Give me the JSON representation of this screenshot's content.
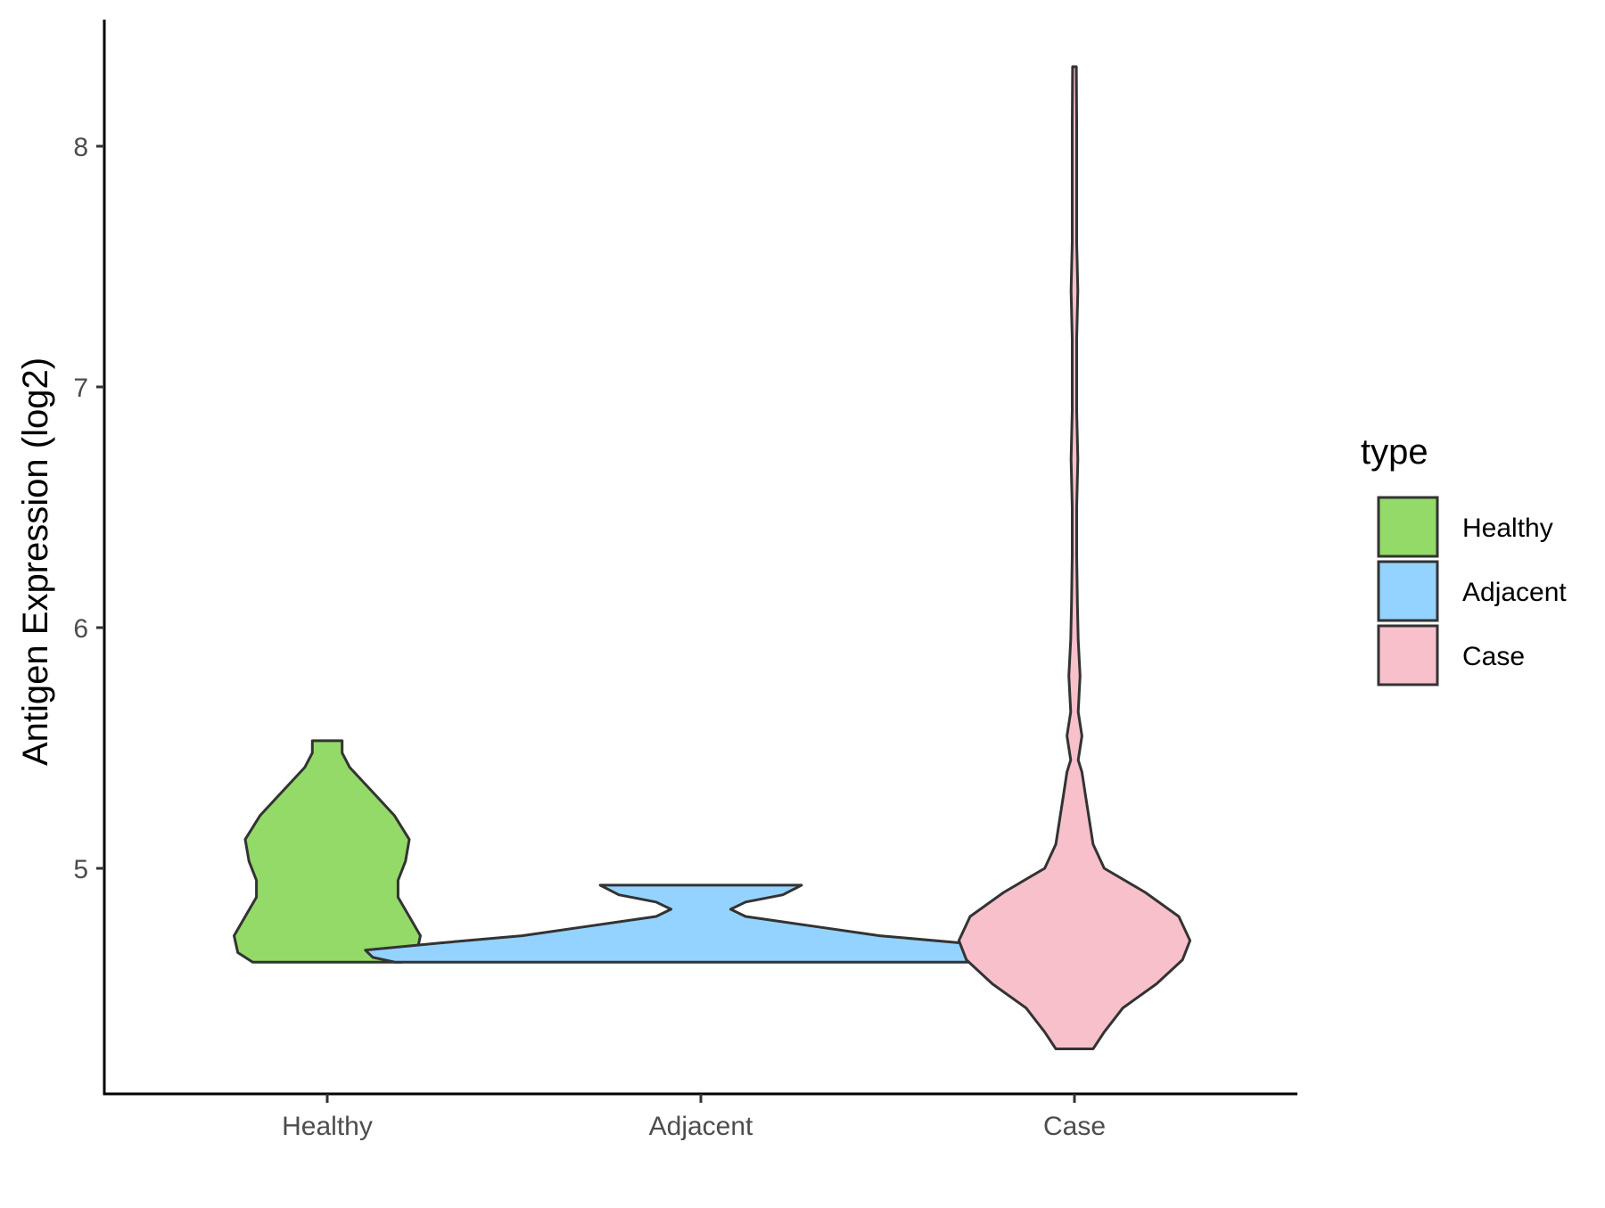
{
  "chart_data": {
    "type": "violin",
    "title": "",
    "xlabel": "",
    "ylabel": "Antigen Expression (log2)",
    "ylim": [
      4.15,
      8.55
    ],
    "yticks": [
      5,
      6,
      7,
      8
    ],
    "categories": [
      "Healthy",
      "Adjacent",
      "Case"
    ],
    "legend": {
      "title": "type",
      "position": "right",
      "entries": [
        "Healthy",
        "Adjacent",
        "Case"
      ]
    },
    "colors": {
      "Healthy": "#93DA69",
      "Adjacent": "#94D3FF",
      "Case": "#F7C0CB",
      "outline": "#333333",
      "axis": "#000000"
    },
    "series": [
      {
        "category": "Healthy",
        "min": 4.61,
        "max": 5.53,
        "density": [
          [
            4.61,
            0.2
          ],
          [
            4.65,
            0.24
          ],
          [
            4.72,
            0.25
          ],
          [
            4.8,
            0.22
          ],
          [
            4.88,
            0.19
          ],
          [
            4.95,
            0.19
          ],
          [
            5.03,
            0.21
          ],
          [
            5.12,
            0.22
          ],
          [
            5.22,
            0.18
          ],
          [
            5.32,
            0.12
          ],
          [
            5.42,
            0.06
          ],
          [
            5.48,
            0.04
          ],
          [
            5.53,
            0.04
          ]
        ]
      },
      {
        "category": "Adjacent",
        "min": 4.61,
        "max": 4.93,
        "density": [
          [
            4.61,
            0.82
          ],
          [
            4.63,
            0.88
          ],
          [
            4.66,
            0.9
          ],
          [
            4.69,
            0.7
          ],
          [
            4.72,
            0.48
          ],
          [
            4.76,
            0.3
          ],
          [
            4.8,
            0.12
          ],
          [
            4.83,
            0.08
          ],
          [
            4.86,
            0.12
          ],
          [
            4.89,
            0.22
          ],
          [
            4.93,
            0.27
          ]
        ]
      },
      {
        "category": "Case",
        "min": 4.25,
        "max": 8.33,
        "density": [
          [
            4.25,
            0.05
          ],
          [
            4.32,
            0.08
          ],
          [
            4.42,
            0.13
          ],
          [
            4.52,
            0.22
          ],
          [
            4.62,
            0.29
          ],
          [
            4.7,
            0.31
          ],
          [
            4.8,
            0.28
          ],
          [
            4.9,
            0.19
          ],
          [
            5.0,
            0.08
          ],
          [
            5.1,
            0.05
          ],
          [
            5.2,
            0.04
          ],
          [
            5.3,
            0.03
          ],
          [
            5.4,
            0.02
          ],
          [
            5.45,
            0.01
          ],
          [
            5.55,
            0.02
          ],
          [
            5.65,
            0.01
          ],
          [
            5.8,
            0.015
          ],
          [
            5.95,
            0.01
          ],
          [
            6.1,
            0.008
          ],
          [
            6.3,
            0.006
          ],
          [
            6.5,
            0.006
          ],
          [
            6.7,
            0.009
          ],
          [
            6.9,
            0.006
          ],
          [
            7.2,
            0.006
          ],
          [
            7.4,
            0.009
          ],
          [
            7.6,
            0.006
          ],
          [
            7.9,
            0.006
          ],
          [
            8.1,
            0.006
          ],
          [
            8.33,
            0.005
          ]
        ]
      }
    ]
  }
}
